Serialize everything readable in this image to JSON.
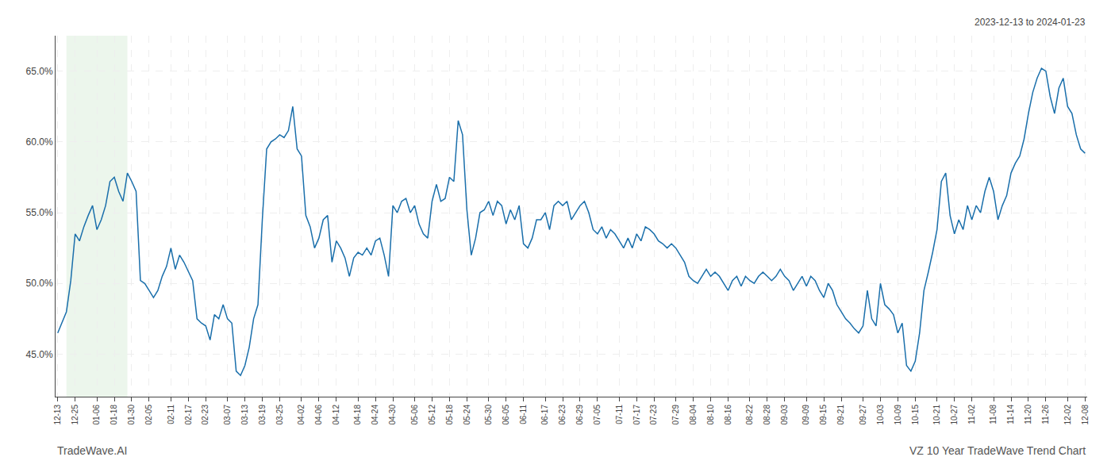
{
  "chart_data": {
    "type": "line",
    "title": "VZ 10 Year TradeWave Trend Chart",
    "subtitle": "2023-12-13 to 2024-01-23",
    "annotations": [
      "TradeWave.AI"
    ],
    "color": "#1a6fab",
    "grid": true,
    "ylim": [
      42.0,
      67.5
    ],
    "yticks": [
      {
        "value": 45.0,
        "label": "45.0%"
      },
      {
        "value": 50.0,
        "label": "50.0%"
      },
      {
        "value": 55.0,
        "label": "55.0%"
      },
      {
        "value": 60.0,
        "label": "60.0%"
      },
      {
        "value": 65.0,
        "label": "65.0%"
      }
    ],
    "highlight": {
      "start": 2,
      "end": 16,
      "color": "#c8e6c9"
    },
    "categories": [
      "12-13",
      null,
      null,
      null,
      "12-25",
      null,
      null,
      null,
      null,
      "01-06",
      null,
      null,
      null,
      "01-18",
      null,
      null,
      null,
      "01-30",
      null,
      null,
      null,
      "02-05",
      null,
      null,
      null,
      null,
      "02-11",
      null,
      null,
      null,
      "02-17",
      null,
      null,
      null,
      "02-23",
      null,
      null,
      null,
      null,
      "03-07",
      null,
      null,
      null,
      "03-13",
      null,
      null,
      null,
      "03-19",
      null,
      null,
      null,
      "03-25",
      null,
      null,
      null,
      null,
      "04-02",
      null,
      null,
      null,
      "04-06",
      null,
      null,
      null,
      "04-12",
      null,
      null,
      null,
      null,
      "04-18",
      null,
      null,
      null,
      "04-24",
      null,
      null,
      null,
      "04-30",
      null,
      null,
      null,
      null,
      "05-06",
      null,
      null,
      null,
      "05-12",
      null,
      null,
      null,
      "05-18",
      null,
      null,
      null,
      "05-24",
      null,
      null,
      null,
      null,
      "05-30",
      null,
      null,
      null,
      "06-05",
      null,
      null,
      null,
      "06-11",
      null,
      null,
      null,
      null,
      "06-17",
      null,
      null,
      null,
      "06-23",
      null,
      null,
      null,
      "06-29",
      null,
      null,
      null,
      "07-05",
      null,
      null,
      null,
      null,
      "07-11",
      null,
      null,
      null,
      "07-17",
      null,
      null,
      null,
      "07-23",
      null,
      null,
      null,
      null,
      "07-29",
      null,
      null,
      null,
      "08-04",
      null,
      null,
      null,
      "08-10",
      null,
      null,
      null,
      "08-16",
      null,
      null,
      null,
      null,
      "08-22",
      null,
      null,
      null,
      "08-28",
      null,
      null,
      null,
      "09-03",
      null,
      null,
      null,
      null,
      "09-09",
      null,
      null,
      null,
      "09-15",
      null,
      null,
      null,
      "09-21",
      null,
      null,
      null,
      null,
      "09-27",
      null,
      null,
      null,
      "10-03",
      null,
      null,
      null,
      "10-09",
      null,
      null,
      null,
      "10-15",
      null,
      null,
      null,
      null,
      "10-21",
      null,
      null,
      null,
      "10-27",
      null,
      null,
      null,
      "11-02",
      null,
      null,
      null,
      null,
      "11-08",
      null,
      null,
      null,
      "11-14",
      null,
      null,
      null,
      "11-20",
      null,
      null,
      null,
      "11-26",
      null,
      null,
      null,
      null,
      "12-02",
      null,
      null,
      null,
      "12-08"
    ],
    "values": [
      46.5,
      47.2,
      48.0,
      50.2,
      53.5,
      53.0,
      54.0,
      54.8,
      55.5,
      53.8,
      54.5,
      55.5,
      57.2,
      57.5,
      56.5,
      55.8,
      57.8,
      57.2,
      56.5,
      50.2,
      50.0,
      49.5,
      49.0,
      49.5,
      50.5,
      51.2,
      52.5,
      51.0,
      52.0,
      51.5,
      50.8,
      50.2,
      47.5,
      47.2,
      47.0,
      46.0,
      47.8,
      47.5,
      48.5,
      47.5,
      47.2,
      43.8,
      43.5,
      44.2,
      45.5,
      47.5,
      48.5,
      54.5,
      59.5,
      60.0,
      60.2,
      60.5,
      60.3,
      60.8,
      62.5,
      59.5,
      59.0,
      54.8,
      54.0,
      52.5,
      53.2,
      54.5,
      54.8,
      51.5,
      53.0,
      52.5,
      51.8,
      50.5,
      51.8,
      52.2,
      52.0,
      52.5,
      52.0,
      53.0,
      53.2,
      52.0,
      50.5,
      55.5,
      55.0,
      55.8,
      56.0,
      55.0,
      55.5,
      54.2,
      53.5,
      53.2,
      55.8,
      57.0,
      55.8,
      56.0,
      57.5,
      57.2,
      61.5,
      60.5,
      55.2,
      52.0,
      53.2,
      55.0,
      55.2,
      55.8,
      54.8,
      55.8,
      55.5,
      54.2,
      55.2,
      54.5,
      55.5,
      52.8,
      52.5,
      53.2,
      54.5,
      54.5,
      55.0,
      53.8,
      55.5,
      55.8,
      55.5,
      55.8,
      54.5,
      55.0,
      55.5,
      55.8,
      55.0,
      53.8,
      53.5,
      54.0,
      53.2,
      53.8,
      53.5,
      53.0,
      52.5,
      53.2,
      52.5,
      53.5,
      53.0,
      54.0,
      53.8,
      53.5,
      53.0,
      52.8,
      52.5,
      52.8,
      52.5,
      52.0,
      51.5,
      50.5,
      50.2,
      50.0,
      50.5,
      51.0,
      50.5,
      50.8,
      50.5,
      50.0,
      49.5,
      50.2,
      50.5,
      49.8,
      50.5,
      50.2,
      50.0,
      50.5,
      50.8,
      50.5,
      50.2,
      50.5,
      51.0,
      50.5,
      50.2,
      49.5,
      50.0,
      50.5,
      49.8,
      50.5,
      50.2,
      49.5,
      49.0,
      50.0,
      49.5,
      48.5,
      48.0,
      47.5,
      47.2,
      46.8,
      46.5,
      47.0,
      49.5,
      47.5,
      47.0,
      50.0,
      48.5,
      48.2,
      47.8,
      46.5,
      47.2,
      44.2,
      43.8,
      44.5,
      46.5,
      49.5,
      50.8,
      52.2,
      53.8,
      57.2,
      57.8,
      54.8,
      53.5,
      54.5,
      53.8,
      55.5,
      54.5,
      55.5,
      55.0,
      56.5,
      57.5,
      56.5,
      54.5,
      55.5,
      56.2,
      57.8,
      58.5,
      59.0,
      60.2,
      62.0,
      63.5,
      64.5,
      65.2,
      65.0,
      63.2,
      62.0,
      63.8,
      64.5,
      62.5,
      62.0,
      60.5,
      59.5,
      59.2
    ]
  }
}
